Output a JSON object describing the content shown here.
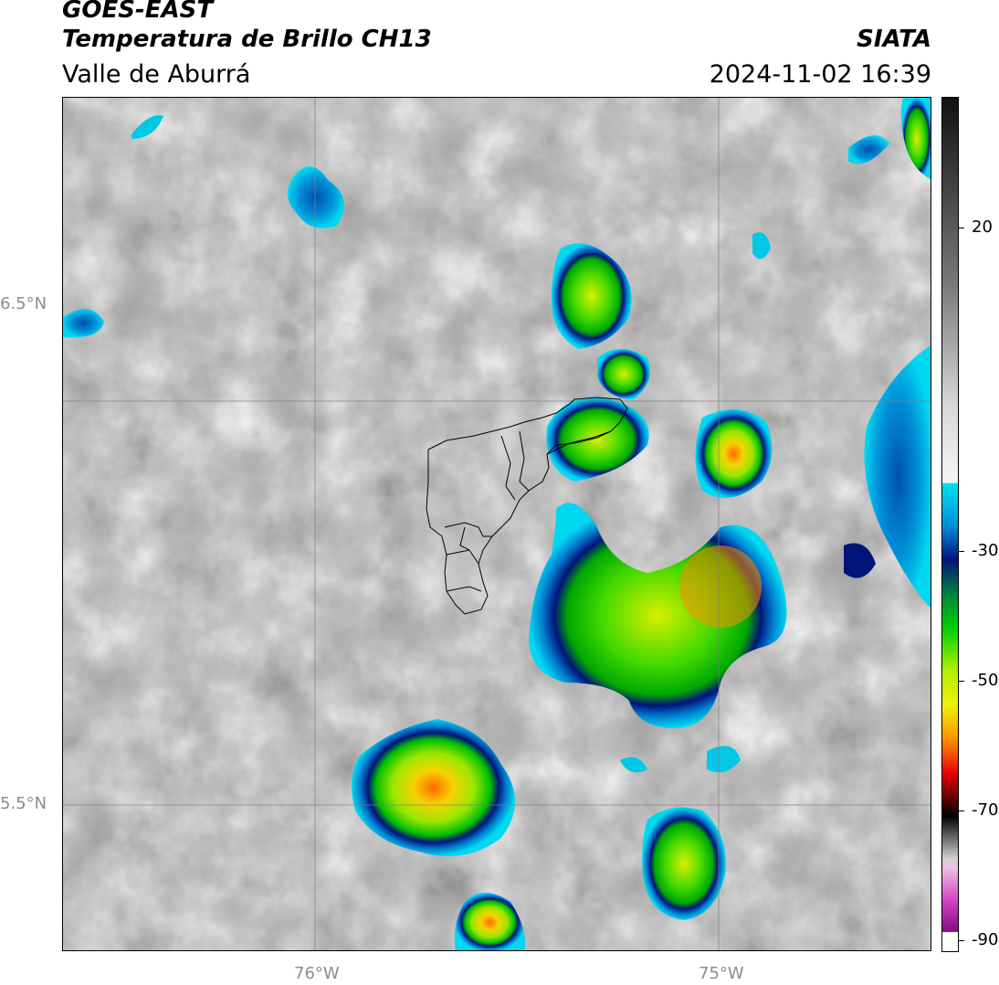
{
  "header": {
    "satellite": "GOES-EAST",
    "product": "Temperatura de Brillo CH13",
    "region": "Valle de Aburrá",
    "agency": "SIATA",
    "timestamp": "2024-11-02 16:39"
  },
  "map": {
    "lat_labels": [
      "6.5°N",
      "5.5°N"
    ],
    "lon_labels": [
      "76°W",
      "75°W"
    ]
  },
  "colorbar": {
    "tick_labels": [
      "20",
      "-30",
      "-50",
      "-70",
      "-90"
    ],
    "colors": {
      "warm_gray_top": "#1a1a1a",
      "light_gray": "#e6e6e6",
      "cyan": "#00c8e6",
      "dark_blue": "#00147a",
      "green": "#00c800",
      "yellow": "#f0f000",
      "red": "#e60000",
      "black": "#000000",
      "magenta": "#c83cc8",
      "white": "#ffffff"
    }
  }
}
